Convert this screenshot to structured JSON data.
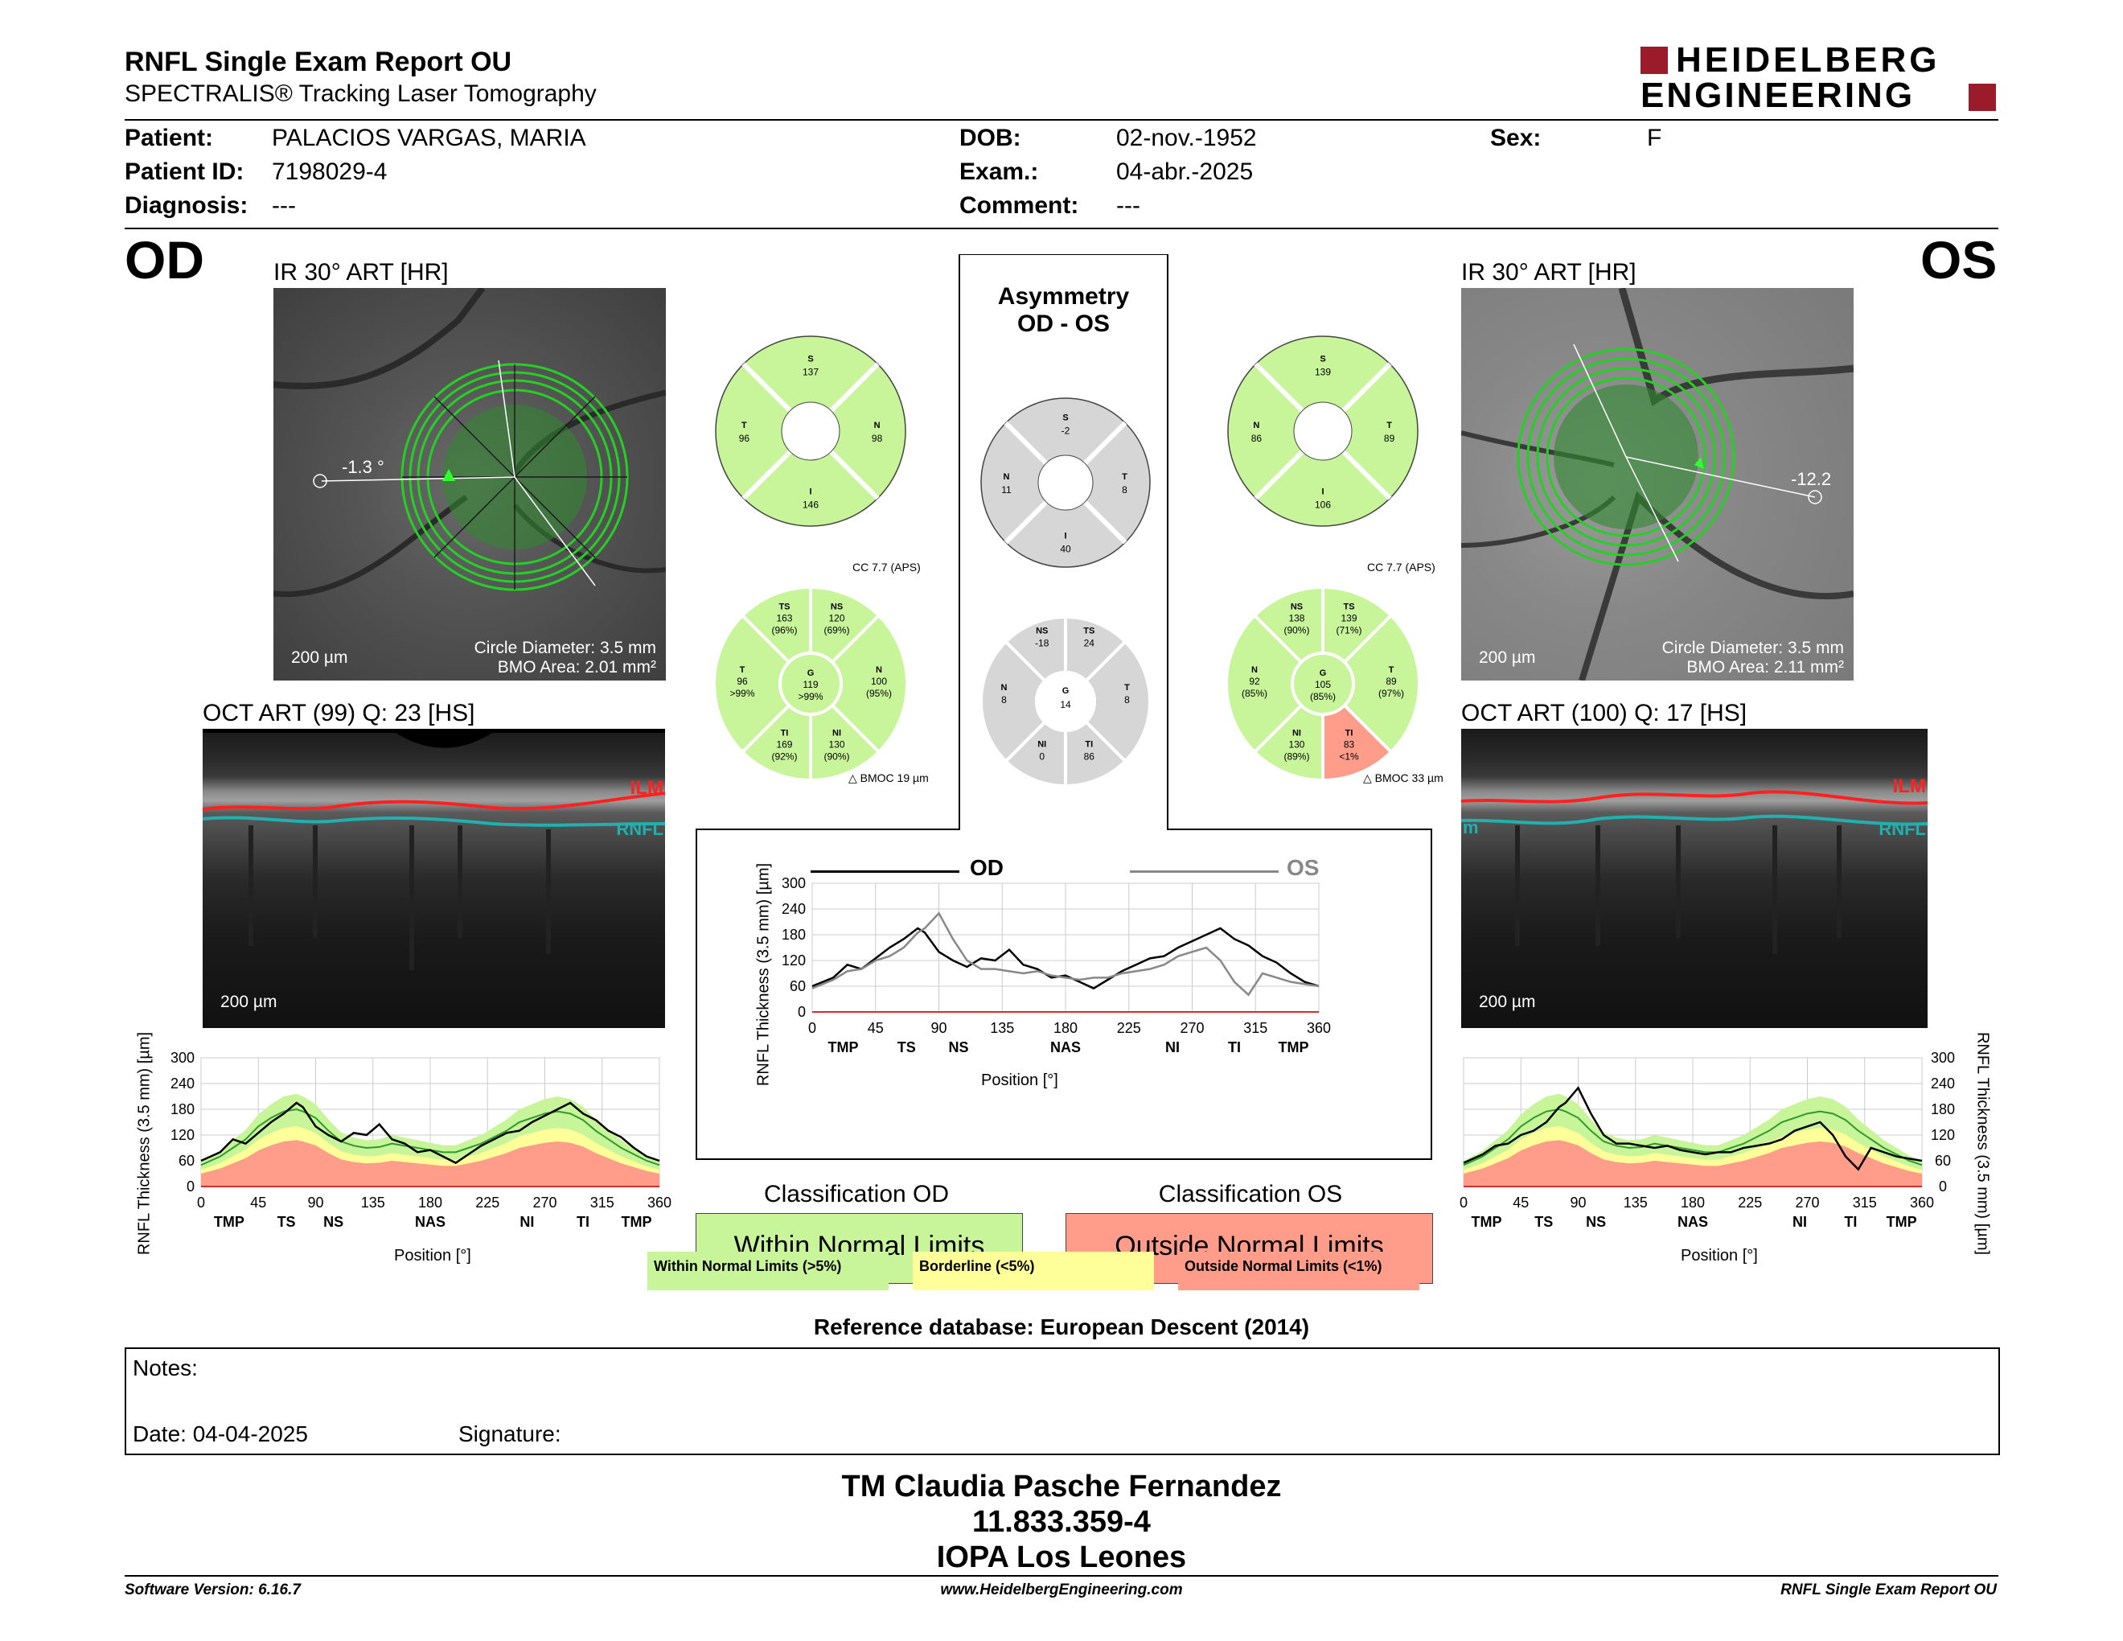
{
  "header": {
    "title": "RNFL Single Exam Report OU",
    "subtitle": "SPECTRALIS® Tracking Laser Tomography",
    "logo_line1": "HEIDELBERG",
    "logo_line2": "ENGINEERING"
  },
  "patient": {
    "patient_label": "Patient:",
    "patient_value": "PALACIOS VARGAS, MARIA",
    "id_label": "Patient ID:",
    "id_value": "7198029-4",
    "diag_label": "Diagnosis:",
    "diag_value": "---",
    "dob_label": "DOB:",
    "dob_value": "02-nov.-1952",
    "exam_label": "Exam.:",
    "exam_value": "04-abr.-2025",
    "comment_label": "Comment:",
    "comment_value": "---",
    "sex_label": "Sex:",
    "sex_value": "F"
  },
  "od": {
    "eye": "OD",
    "ir_title": "IR 30° ART [HR]",
    "angle": "-1.3 °",
    "circle": "Circle Diameter: 3.5 mm",
    "bmo": "BMO Area: 2.01 mm²",
    "ir_scale": "200 µm",
    "oct_title": "OCT ART (99) Q: 23 [HS]",
    "oct_scale": "200 µm",
    "ilm": "ILM",
    "rnfl": "RNFL",
    "sectors4": {
      "S": "137",
      "T": "96",
      "N": "98",
      "I": "146"
    },
    "cc": "CC 7.7 (APS)",
    "bmoc": "BMOC 19 µm",
    "sectors6": {
      "TS": [
        "163",
        "(96%)"
      ],
      "NS": [
        "120",
        "(69%)"
      ],
      "T": [
        "96",
        ">99%"
      ],
      "G": [
        "119",
        ">99%"
      ],
      "N": [
        "100",
        "(95%)"
      ],
      "TI": [
        "169",
        "(92%)"
      ],
      "NI": [
        "130",
        "(90%)"
      ]
    }
  },
  "os": {
    "eye": "OS",
    "ir_title": "IR 30° ART [HR]",
    "angle": "-12.2",
    "circle": "Circle Diameter: 3.5 mm",
    "bmo": "BMO Area: 2.11 mm²",
    "ir_scale": "200 µm",
    "oct_title": "OCT ART (100) Q: 17 [HS]",
    "oct_scale": "200 µm",
    "ilm": "ILM",
    "rnfl": "RNFL",
    "rnfl_left": "m",
    "sectors4": {
      "S": "139",
      "N": "86",
      "T": "89",
      "I": "106"
    },
    "cc": "CC 7.7 (APS)",
    "bmoc": "BMOC 33 µm",
    "sectors6": {
      "NS": [
        "138",
        "(90%)"
      ],
      "TS": [
        "139",
        "(71%)"
      ],
      "N": [
        "92",
        "(85%)"
      ],
      "G": [
        "105",
        "(85%)"
      ],
      "T": [
        "89",
        "(97%)"
      ],
      "NI": [
        "130",
        "(89%)"
      ],
      "TI": [
        "83",
        "<1%"
      ]
    }
  },
  "asym": {
    "title1": "Asymmetry",
    "title2": "OD - OS",
    "sectors4": {
      "S": "-2",
      "N": "11",
      "T": "8",
      "I": "40"
    },
    "sectors6": {
      "NS": "-18",
      "TS": "24",
      "N": "8",
      "G": "14",
      "T": "8",
      "NI": "0",
      "TI": "86"
    }
  },
  "center_chart": {
    "od_label": "OD",
    "os_label": "OS",
    "ylabel": "RNFL Thickness (3.5 mm) [µm]",
    "xlabel": "Position [°]"
  },
  "side_chart": {
    "ylabel": "RNFL Thickness (3.5 mm) [µm]",
    "xlabel": "Position [°]"
  },
  "chart_data": [
    {
      "type": "line",
      "id": "od_profile",
      "yticks": [
        0,
        60,
        120,
        180,
        240,
        300
      ],
      "ylim": [
        0,
        300
      ],
      "xlim": [
        0,
        360
      ],
      "xticks": [
        0,
        45,
        90,
        135,
        180,
        225,
        270,
        315,
        360
      ],
      "region_labels": [
        {
          "x": 22,
          "t": "TMP"
        },
        {
          "x": 67,
          "t": "TS"
        },
        {
          "x": 104,
          "t": "NS"
        },
        {
          "x": 180,
          "t": "NAS"
        },
        {
          "x": 256,
          "t": "NI"
        },
        {
          "x": 300,
          "t": "TI"
        },
        {
          "x": 342,
          "t": "TMP"
        }
      ],
      "x": [
        0,
        15,
        25,
        35,
        45,
        55,
        65,
        75,
        80,
        90,
        100,
        110,
        120,
        130,
        140,
        150,
        160,
        170,
        180,
        190,
        200,
        210,
        220,
        230,
        240,
        250,
        260,
        270,
        280,
        290,
        300,
        310,
        320,
        330,
        340,
        350,
        360
      ],
      "y": [
        60,
        80,
        110,
        100,
        125,
        150,
        170,
        195,
        185,
        140,
        120,
        105,
        125,
        120,
        145,
        110,
        100,
        80,
        85,
        70,
        55,
        75,
        95,
        110,
        125,
        130,
        150,
        165,
        180,
        195,
        170,
        155,
        130,
        115,
        90,
        70,
        60
      ],
      "normal_p50": [
        50,
        70,
        90,
        110,
        140,
        160,
        175,
        180,
        175,
        160,
        130,
        105,
        95,
        90,
        92,
        100,
        95,
        90,
        85,
        80,
        80,
        90,
        100,
        115,
        130,
        150,
        160,
        170,
        175,
        170,
        155,
        130,
        110,
        90,
        75,
        60,
        50
      ]
    },
    {
      "type": "line",
      "id": "os_profile",
      "yticks": [
        0,
        60,
        120,
        180,
        240,
        300
      ],
      "ylim": [
        0,
        300
      ],
      "xlim": [
        0,
        360
      ],
      "xticks": [
        0,
        45,
        90,
        135,
        180,
        225,
        270,
        315,
        360
      ],
      "region_labels": [
        {
          "x": 18,
          "t": "TMP"
        },
        {
          "x": 63,
          "t": "TS"
        },
        {
          "x": 104,
          "t": "NS"
        },
        {
          "x": 180,
          "t": "NAS"
        },
        {
          "x": 264,
          "t": "NI"
        },
        {
          "x": 304,
          "t": "TI"
        },
        {
          "x": 344,
          "t": "TMP"
        }
      ],
      "x": [
        0,
        15,
        25,
        35,
        45,
        55,
        65,
        75,
        80,
        90,
        100,
        110,
        120,
        130,
        140,
        150,
        160,
        170,
        180,
        190,
        200,
        210,
        220,
        230,
        240,
        250,
        260,
        270,
        280,
        290,
        300,
        310,
        320,
        330,
        340,
        350,
        360
      ],
      "y": [
        55,
        75,
        95,
        100,
        120,
        130,
        150,
        185,
        195,
        230,
        170,
        120,
        100,
        100,
        95,
        90,
        95,
        85,
        80,
        75,
        80,
        80,
        90,
        95,
        100,
        110,
        130,
        140,
        150,
        120,
        70,
        40,
        90,
        80,
        70,
        65,
        60
      ],
      "normal_p50": [
        50,
        70,
        90,
        110,
        140,
        160,
        175,
        180,
        175,
        160,
        130,
        105,
        95,
        90,
        92,
        100,
        95,
        90,
        85,
        80,
        80,
        90,
        100,
        115,
        130,
        150,
        160,
        170,
        175,
        170,
        155,
        130,
        110,
        90,
        75,
        60,
        50
      ]
    },
    {
      "type": "line",
      "id": "asym_profile",
      "yticks": [
        0,
        60,
        120,
        180,
        240,
        300
      ],
      "ylim": [
        0,
        300
      ],
      "xlim": [
        0,
        360
      ],
      "xticks": [
        0,
        45,
        90,
        135,
        180,
        225,
        270,
        315,
        360
      ],
      "region_labels": [
        {
          "x": 22,
          "t": "TMP"
        },
        {
          "x": 67,
          "t": "TS"
        },
        {
          "x": 104,
          "t": "NS"
        },
        {
          "x": 180,
          "t": "NAS"
        },
        {
          "x": 256,
          "t": "NI"
        },
        {
          "x": 300,
          "t": "TI"
        },
        {
          "x": 342,
          "t": "TMP"
        }
      ],
      "series": [
        {
          "name": "OD",
          "x": [
            0,
            15,
            25,
            35,
            45,
            55,
            65,
            75,
            80,
            90,
            100,
            110,
            120,
            130,
            140,
            150,
            160,
            170,
            180,
            190,
            200,
            210,
            220,
            230,
            240,
            250,
            260,
            270,
            280,
            290,
            300,
            310,
            320,
            330,
            340,
            350,
            360
          ],
          "y": [
            60,
            80,
            110,
            100,
            125,
            150,
            170,
            195,
            185,
            140,
            120,
            105,
            125,
            120,
            145,
            110,
            100,
            80,
            85,
            70,
            55,
            75,
            95,
            110,
            125,
            130,
            150,
            165,
            180,
            195,
            170,
            155,
            130,
            115,
            90,
            70,
            60
          ]
        },
        {
          "name": "OS",
          "x": [
            0,
            15,
            25,
            35,
            45,
            55,
            65,
            75,
            80,
            90,
            100,
            110,
            120,
            130,
            140,
            150,
            160,
            170,
            180,
            190,
            200,
            210,
            220,
            230,
            240,
            250,
            260,
            270,
            280,
            290,
            300,
            310,
            320,
            330,
            340,
            350,
            360
          ],
          "y": [
            55,
            75,
            95,
            100,
            120,
            130,
            150,
            185,
            195,
            230,
            170,
            120,
            100,
            100,
            95,
            90,
            95,
            85,
            80,
            75,
            80,
            80,
            90,
            95,
            100,
            110,
            130,
            140,
            150,
            120,
            70,
            40,
            90,
            80,
            70,
            65,
            60
          ]
        }
      ]
    }
  ],
  "classification": {
    "od_title": "Classification OD",
    "od_value": "Within Normal Limits",
    "os_title": "Classification OS",
    "os_value": "Outside Normal Limits",
    "legend_green": "Within Normal Limits (>5%)",
    "legend_yellow": "Borderline (<5%)",
    "legend_red": "Outside Normal Limits (<1%)"
  },
  "reference": "Reference database: European Descent (2014)",
  "notes": {
    "label": "Notes:",
    "date": "Date: 04-04-2025",
    "signature": "Signature:"
  },
  "signer": {
    "line1": "TM Claudia Pasche Fernandez",
    "line2": "11.833.359-4",
    "line3": "IOPA Los Leones"
  },
  "footer": {
    "version": "Software Version: 6.16.7",
    "url": "www.HeidelbergEngineering.com",
    "report": "RNFL Single Exam Report OU"
  },
  "colors": {
    "green": "#c8f59a",
    "yellow": "#ffff99",
    "red": "#ff9c8a",
    "gray": "#d6d6d6"
  }
}
